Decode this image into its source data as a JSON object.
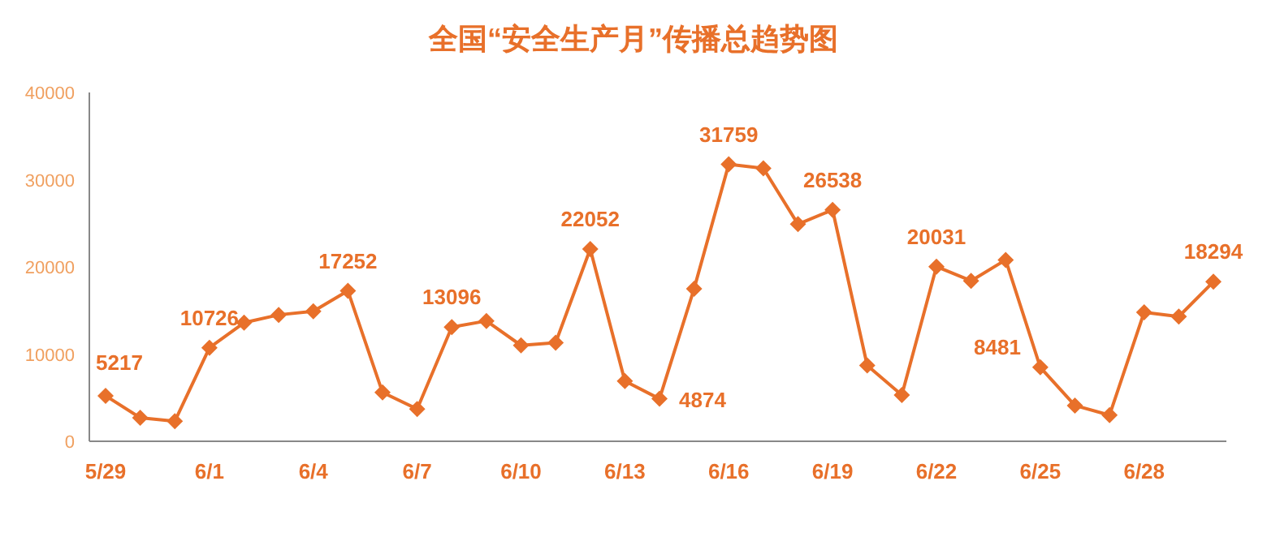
{
  "chart_data": {
    "type": "line",
    "title": "全国“安全生产月”传播总趋势图",
    "categories": [
      "5/29",
      null,
      null,
      "6/1",
      null,
      null,
      "6/4",
      null,
      null,
      "6/7",
      null,
      null,
      "6/10",
      null,
      null,
      "6/13",
      null,
      null,
      "6/16",
      null,
      null,
      "6/19",
      null,
      null,
      "6/22",
      null,
      null,
      "6/25",
      null,
      null,
      "6/28",
      null,
      null
    ],
    "series": [
      {
        "color": "#e8702a",
        "values": [
          5217,
          2700,
          2300,
          10726,
          13600,
          14500,
          14900,
          17252,
          5600,
          3700,
          13096,
          13800,
          11000,
          11300,
          22052,
          6900,
          4874,
          17500,
          31759,
          31300,
          24900,
          26538,
          8700,
          5300,
          20031,
          18400,
          20800,
          8481,
          4100,
          3000,
          14800,
          14300,
          18294
        ],
        "value_labels": [
          "5217",
          null,
          null,
          "10726",
          null,
          null,
          null,
          "17252",
          null,
          null,
          "13096",
          null,
          null,
          null,
          "22052",
          null,
          "4874",
          null,
          "31759",
          null,
          null,
          "26538",
          null,
          null,
          "20031",
          null,
          null,
          "8481",
          null,
          null,
          null,
          null,
          "18294"
        ]
      }
    ],
    "ylim": [
      0,
      40000
    ],
    "yticks": [
      0,
      10000,
      20000,
      30000,
      40000
    ],
    "marker": "diamond",
    "grid": false
  }
}
